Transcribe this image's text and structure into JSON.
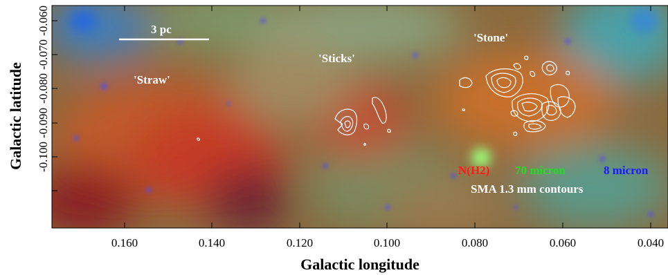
{
  "axes": {
    "xlabel": "Galactic longitude",
    "ylabel": "Galactic latitude",
    "x_ticks": [
      "0.160",
      "0.140",
      "0.120",
      "0.100",
      "0.080",
      "0.060",
      "0.040"
    ],
    "y_ticks": [
      "-0.060",
      "-0.070",
      "-0.080",
      "-0.090",
      "-0.100"
    ]
  },
  "scale_bar": {
    "label": "3 pc"
  },
  "regions": {
    "straw": "'Straw'",
    "sticks": "'Sticks'",
    "stone": "'Stone'"
  },
  "legend": {
    "nh2": "N(H2)",
    "micron70": "70 micron",
    "micron8": "8 micron",
    "contours": "SMA 1.3 mm contours"
  },
  "colors": {
    "nh2": "#ff1a1a",
    "micron70": "#22dd22",
    "micron8": "#1a1aff",
    "contours": "#ffffff"
  }
}
